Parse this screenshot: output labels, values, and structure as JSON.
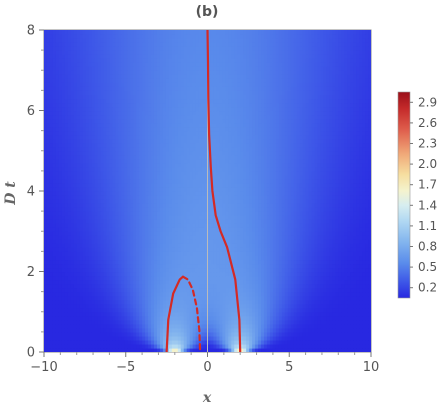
{
  "chart_data": {
    "type": "heatmap",
    "title": "(b)",
    "xlabel": "x",
    "ylabel": "D t",
    "xlim": [
      -10,
      10
    ],
    "ylim": [
      0,
      8
    ],
    "x_ticks": [
      -10,
      -5,
      0,
      5,
      10
    ],
    "y_ticks": [
      0,
      2,
      4,
      6,
      8
    ],
    "colorbar": {
      "range": [
        0.05,
        3.05
      ],
      "ticks": [
        0.2,
        0.5,
        0.8,
        1.1,
        1.4,
        1.7,
        2.0,
        2.3,
        2.6,
        2.9
      ],
      "tick_labels": [
        "0.2",
        "0.5",
        "0.8",
        "1.1",
        "1.4",
        "1.7",
        "2.0",
        "2.3",
        "2.6",
        "2.9"
      ],
      "colormap": "blue-white-red"
    },
    "sources": [
      {
        "x": -2,
        "amplitude": 1
      },
      {
        "x": 2,
        "amplitude": 1
      }
    ],
    "series": [
      {
        "style": "solid",
        "color": "#d42a25",
        "x": [
          -2.5,
          -2.4,
          -2.1,
          -1.7,
          -1.5
        ],
        "y": [
          0.0,
          0.8,
          1.45,
          1.8,
          1.87
        ]
      },
      {
        "style": "dashed",
        "color": "#d42a25",
        "x": [
          -1.5,
          -1.2,
          -0.9,
          -0.65,
          -0.5,
          -0.45
        ],
        "y": [
          1.87,
          1.8,
          1.55,
          1.1,
          0.55,
          0.0
        ]
      },
      {
        "style": "solid",
        "color": "#d42a25",
        "x": [
          2.0,
          1.95,
          1.7,
          1.2,
          0.8,
          0.5,
          0.3,
          0.2,
          0.1,
          0.05,
          0.03,
          0.0
        ],
        "y": [
          0.0,
          0.8,
          1.8,
          2.6,
          3.0,
          3.4,
          4.0,
          4.6,
          5.4,
          6.3,
          7.2,
          8.0
        ]
      }
    ],
    "vertical_line": {
      "x": 0,
      "color": "#bbbbbb"
    }
  }
}
